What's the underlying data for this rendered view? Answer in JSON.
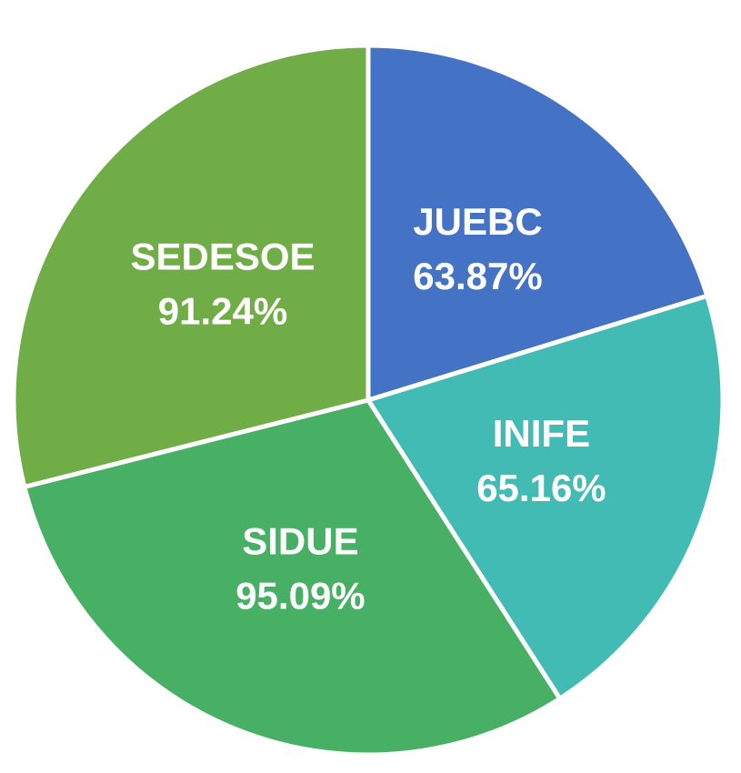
{
  "chart_data": {
    "type": "pie",
    "categories": [
      "JUEBC",
      "INIFE",
      "SIDUE",
      "SEDESOE"
    ],
    "values": [
      63.87,
      65.16,
      95.09,
      91.24
    ],
    "value_labels": [
      "63.87%",
      "65.16%",
      "95.09%",
      "91.24%"
    ],
    "colors": [
      "#4472c4",
      "#42bbb5",
      "#48b064",
      "#71ad47"
    ]
  }
}
